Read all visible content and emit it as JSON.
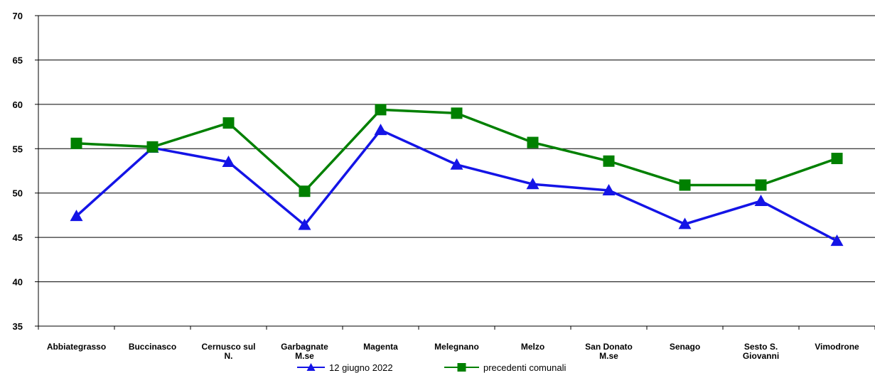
{
  "chart_data": {
    "type": "line",
    "title": "",
    "xlabel": "",
    "ylabel": "",
    "ylim": [
      35,
      70
    ],
    "yticks": [
      "35",
      "40",
      "45",
      "50",
      "55",
      "60",
      "65",
      "70"
    ],
    "grid": "horizontal",
    "legend_position": "bottom",
    "categories": [
      [
        "Abbiategrasso"
      ],
      [
        "Buccinasco"
      ],
      [
        "Cernusco sul",
        "N."
      ],
      [
        "Garbagnate",
        "M.se"
      ],
      [
        "Magenta"
      ],
      [
        "Melegnano"
      ],
      [
        "Melzo"
      ],
      [
        "San Donato",
        "M.se"
      ],
      [
        "Senago"
      ],
      [
        "Sesto S.",
        "Giovanni"
      ],
      [
        "Vimodrone"
      ]
    ],
    "series": [
      {
        "name": "12 giugno 2022",
        "color": "#1414e6",
        "marker": "triangle",
        "values": [
          47.4,
          55.1,
          53.5,
          46.4,
          57.1,
          53.2,
          51.0,
          50.3,
          46.5,
          49.1,
          44.6
        ]
      },
      {
        "name": "precedenti comunali",
        "color": "#008000",
        "marker": "square",
        "values": [
          55.6,
          55.2,
          57.9,
          50.2,
          59.4,
          59.0,
          55.7,
          53.6,
          50.9,
          50.9,
          53.9
        ]
      }
    ]
  }
}
